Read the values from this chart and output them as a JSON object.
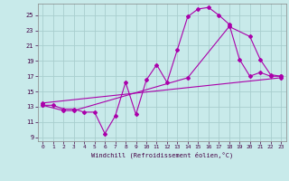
{
  "xlabel": "Windchill (Refroidissement éolien,°C)",
  "background_color": "#c8eaea",
  "grid_color": "#a8cece",
  "line_color": "#aa00aa",
  "xlim": [
    -0.5,
    23.5
  ],
  "ylim": [
    8.5,
    26.5
  ],
  "xticks": [
    0,
    1,
    2,
    3,
    4,
    5,
    6,
    7,
    8,
    9,
    10,
    11,
    12,
    13,
    14,
    15,
    16,
    17,
    18,
    19,
    20,
    21,
    22,
    23
  ],
  "yticks": [
    9,
    11,
    13,
    15,
    17,
    19,
    21,
    23,
    25
  ],
  "line1_x": [
    0,
    1,
    2,
    3,
    4,
    5,
    6,
    7,
    8,
    9,
    10,
    11,
    12,
    13,
    14,
    15,
    16,
    17,
    18,
    19,
    20,
    21,
    22,
    23
  ],
  "line1_y": [
    13.2,
    13.2,
    12.7,
    12.7,
    12.3,
    12.3,
    9.5,
    11.8,
    16.2,
    12.0,
    16.5,
    18.5,
    16.2,
    20.5,
    24.8,
    25.8,
    26.0,
    25.0,
    23.8,
    19.2,
    17.0,
    17.5,
    17.0,
    17.0
  ],
  "line2_x": [
    0,
    2,
    3,
    14,
    18,
    20,
    21,
    22,
    23
  ],
  "line2_y": [
    13.2,
    12.5,
    12.5,
    16.8,
    23.5,
    22.2,
    19.2,
    17.2,
    17.0
  ],
  "line3_x": [
    0,
    23
  ],
  "line3_y": [
    13.5,
    16.8
  ]
}
